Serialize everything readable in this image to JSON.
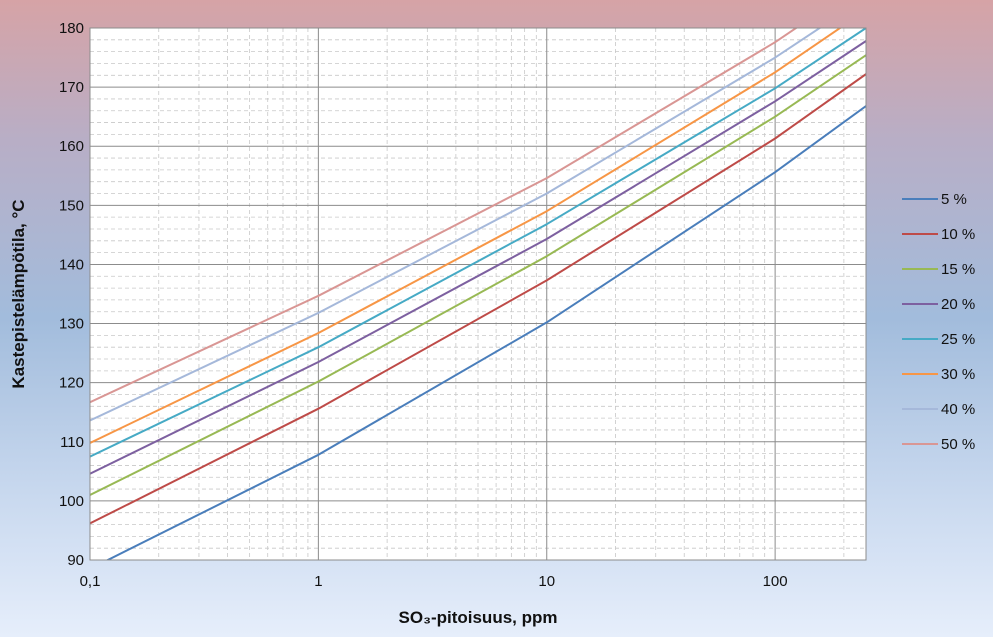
{
  "chart_data": {
    "type": "line",
    "title": "",
    "xlabel": "SO₃-pitoisuus, ppm",
    "ylabel": "Kastepistelämpötila, °C",
    "x_scale": "log",
    "xlim": [
      0.1,
      250
    ],
    "ylim": [
      90,
      180
    ],
    "x_ticks": [
      0.1,
      1,
      10,
      100
    ],
    "x_tick_labels": [
      "0,1",
      "1",
      "10",
      "100"
    ],
    "y_ticks": [
      90,
      100,
      110,
      120,
      130,
      140,
      150,
      160,
      170,
      180
    ],
    "y_tick_labels": [
      "90",
      "100",
      "110",
      "120",
      "130",
      "140",
      "150",
      "160",
      "170",
      "180"
    ],
    "grid": true,
    "legend_position": "right",
    "x": [
      0.1,
      1,
      10,
      100,
      250
    ],
    "series": [
      {
        "name": "5 %",
        "color": "#4a7ebb",
        "values": [
          88.5,
          107.8,
          130.2,
          155.6,
          166.8
        ]
      },
      {
        "name": "10 %",
        "color": "#be4b48",
        "values": [
          96.2,
          115.6,
          137.3,
          161.3,
          172.2
        ]
      },
      {
        "name": "15 %",
        "color": "#98b954",
        "values": [
          101.0,
          120.2,
          141.4,
          165.0,
          175.4
        ]
      },
      {
        "name": "20 %",
        "color": "#7d60a0",
        "values": [
          104.6,
          123.5,
          144.3,
          167.6,
          177.8
        ]
      },
      {
        "name": "25 %",
        "color": "#46aac5",
        "values": [
          107.5,
          126.0,
          146.8,
          169.8,
          180.0
        ]
      },
      {
        "name": "30 %",
        "color": "#f79646",
        "values": [
          109.8,
          128.4,
          149.0,
          172.5,
          183.0
        ]
      },
      {
        "name": "40 %",
        "color": "#a5b8da",
        "values": [
          113.6,
          131.8,
          152.0,
          175.0,
          185.2
        ]
      },
      {
        "name": "50 %",
        "color": "#d99694",
        "values": [
          116.7,
          134.7,
          154.6,
          177.6,
          188.0
        ]
      }
    ]
  }
}
